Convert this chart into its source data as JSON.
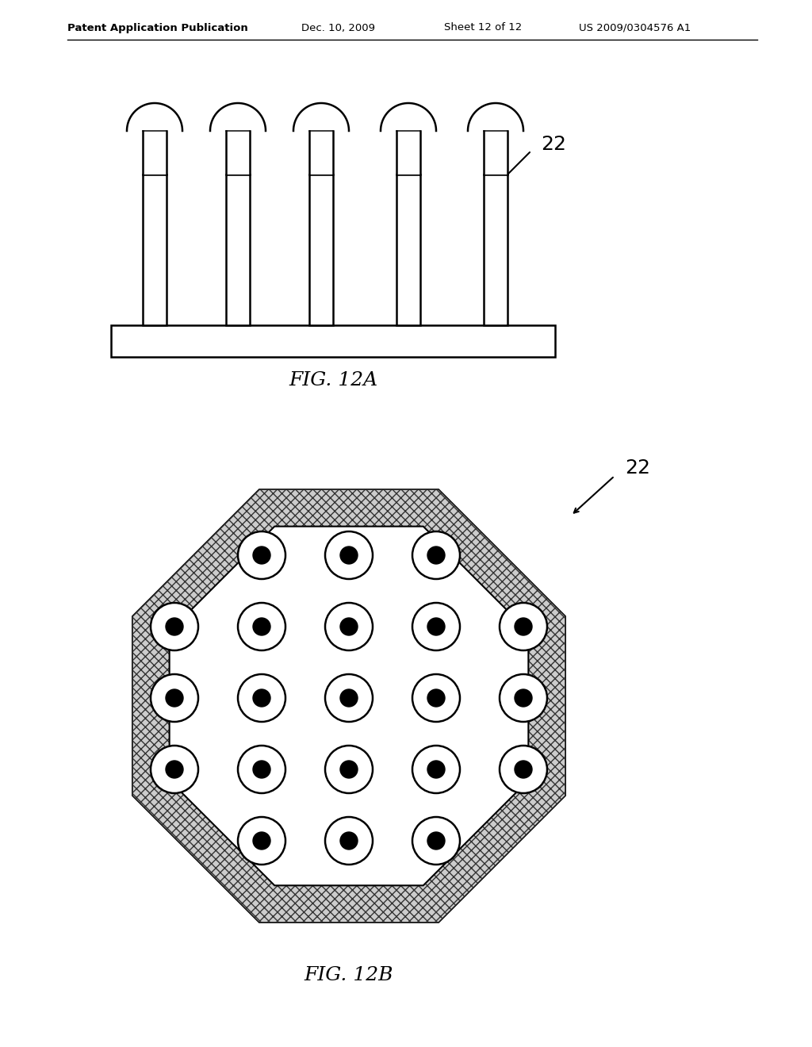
{
  "bg_color": "#ffffff",
  "header_text": "Patent Application Publication",
  "header_date": "Dec. 10, 2009",
  "header_sheet": "Sheet 12 of 12",
  "header_patent": "US 2009/0304576 A1",
  "fig12a_label": "FIG. 12A",
  "fig12b_label": "FIG. 12B",
  "label_22": "22",
  "line_color": "#000000",
  "fill_color": "#ffffff"
}
